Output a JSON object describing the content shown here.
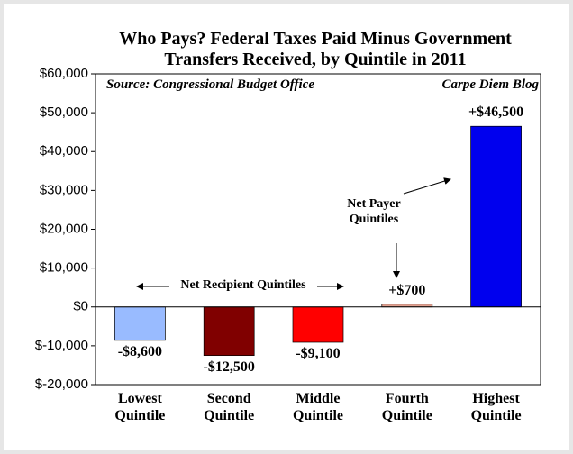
{
  "chart_data": {
    "type": "bar",
    "title": "Who Pays? Federal Taxes Paid Minus Government Transfers Received, by Quintile in 2011",
    "source": "Source: Congressional Budget Office",
    "credit": "Carpe Diem Blog",
    "annotations": [
      "Net Recipient Quintiles",
      "Net Payer Quintiles"
    ],
    "categories": [
      "Lowest Quintile",
      "Second Quintile",
      "Middle Quintile",
      "Fourth Quintile",
      "Highest Quintile"
    ],
    "values": [
      -8600,
      -12500,
      -9100,
      700,
      46500
    ],
    "value_labels": [
      "-$8,600",
      "-$12,500",
      "-$9,100",
      "+$700",
      "+$46,500"
    ],
    "colors": [
      "#99bbff",
      "#800000",
      "#ff0000",
      "#e0a090",
      "#0000ee"
    ],
    "ylim": [
      -20000,
      60000
    ],
    "yticks": [
      {
        "value": -20000,
        "label": "$-20,000"
      },
      {
        "value": -10000,
        "label": "$-10,000"
      },
      {
        "value": 0,
        "label": "$0"
      },
      {
        "value": 10000,
        "label": "$10,000"
      },
      {
        "value": 20000,
        "label": "$20,000"
      },
      {
        "value": 30000,
        "label": "$30,000"
      },
      {
        "value": 40000,
        "label": "$40,000"
      },
      {
        "value": 50000,
        "label": "$50,000"
      },
      {
        "value": 60000,
        "label": "$60,000"
      }
    ],
    "grid": false
  }
}
